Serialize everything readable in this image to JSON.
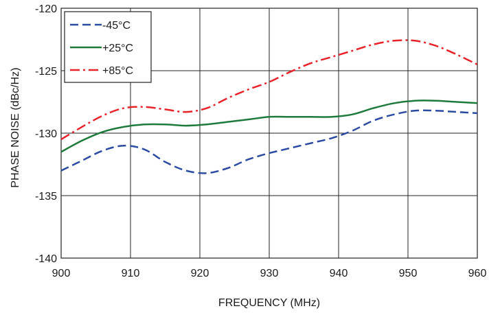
{
  "chart_data": {
    "type": "line",
    "xlabel": "FREQUENCY (MHz)",
    "ylabel": "PHASE NOISE  (dBc/Hz)",
    "xlim": [
      900,
      960
    ],
    "ylim": [
      -140,
      -120
    ],
    "xticks": [
      900,
      910,
      920,
      930,
      940,
      950,
      960
    ],
    "yticks": [
      -140,
      -135,
      -130,
      -125,
      -120
    ],
    "grid": true,
    "legend_position": "top-left",
    "series": [
      {
        "name": "-45°C",
        "color": "#2b4ba1",
        "dash": "dashed",
        "x": [
          900,
          903,
          906,
          909,
          912,
          915,
          918,
          921,
          924,
          927,
          930,
          933,
          936,
          939,
          942,
          945,
          948,
          951,
          954,
          957,
          960
        ],
        "y": [
          -133.0,
          -132.2,
          -131.4,
          -131.0,
          -131.3,
          -132.3,
          -133.0,
          -133.2,
          -132.8,
          -132.1,
          -131.6,
          -131.2,
          -130.8,
          -130.4,
          -129.8,
          -129.0,
          -128.5,
          -128.2,
          -128.2,
          -128.3,
          -128.4
        ]
      },
      {
        "name": "+25°C",
        "color": "#1d7a3a",
        "dash": "solid",
        "x": [
          900,
          903,
          906,
          909,
          912,
          915,
          918,
          921,
          924,
          927,
          930,
          933,
          936,
          939,
          942,
          945,
          948,
          951,
          954,
          957,
          960
        ],
        "y": [
          -131.5,
          -130.6,
          -129.9,
          -129.5,
          -129.3,
          -129.3,
          -129.4,
          -129.3,
          -129.1,
          -128.9,
          -128.7,
          -128.7,
          -128.7,
          -128.7,
          -128.5,
          -128.0,
          -127.6,
          -127.4,
          -127.4,
          -127.5,
          -127.6
        ]
      },
      {
        "name": "+85°C",
        "color": "#e8232a",
        "dash": "dashdot",
        "x": [
          900,
          903,
          906,
          909,
          912,
          915,
          918,
          921,
          924,
          927,
          930,
          933,
          936,
          939,
          942,
          945,
          948,
          951,
          954,
          957,
          960
        ],
        "y": [
          -130.5,
          -129.5,
          -128.6,
          -128.0,
          -127.9,
          -128.1,
          -128.3,
          -128.0,
          -127.2,
          -126.5,
          -125.9,
          -125.1,
          -124.4,
          -123.9,
          -123.4,
          -122.9,
          -122.6,
          -122.6,
          -123.0,
          -123.7,
          -124.5
        ]
      }
    ]
  }
}
